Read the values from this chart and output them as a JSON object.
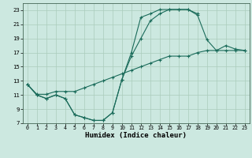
{
  "xlabel": "Humidex (Indice chaleur)",
  "bg_color": "#cce8e0",
  "grid_color": "#aaccbb",
  "line_color": "#1a6b5a",
  "xlim": [
    -0.5,
    23.5
  ],
  "ylim": [
    7,
    24
  ],
  "xticks": [
    0,
    1,
    2,
    3,
    4,
    5,
    6,
    7,
    8,
    9,
    10,
    11,
    12,
    13,
    14,
    15,
    16,
    17,
    18,
    19,
    20,
    21,
    22,
    23
  ],
  "yticks": [
    7,
    9,
    11,
    13,
    15,
    17,
    19,
    21,
    23
  ],
  "line1_x": [
    0,
    1,
    2,
    3,
    4,
    5,
    6,
    7,
    8,
    9,
    10,
    11,
    12,
    13,
    14,
    15,
    16,
    17,
    18
  ],
  "line1_y": [
    12.5,
    11,
    10.5,
    11,
    10.5,
    8.2,
    7.8,
    7.4,
    7.4,
    8.5,
    13.2,
    17,
    22,
    22.5,
    23.1,
    23.1,
    23.1,
    23.1,
    22.5
  ],
  "line2_x": [
    0,
    1,
    2,
    3,
    4,
    5,
    6,
    7,
    8,
    9,
    10,
    11,
    12,
    13,
    14,
    15,
    16,
    17,
    18,
    19,
    20,
    21,
    22,
    23
  ],
  "line2_y": [
    12.5,
    11,
    10.5,
    11,
    10.5,
    8.2,
    7.8,
    7.4,
    7.4,
    8.5,
    13.2,
    16.5,
    19,
    21.5,
    22.5,
    23.1,
    23.1,
    23.1,
    22.3,
    18.8,
    17.3,
    18.0,
    17.5,
    17.3
  ],
  "line3_x": [
    0,
    1,
    2,
    3,
    4,
    5,
    6,
    7,
    8,
    9,
    10,
    11,
    12,
    13,
    14,
    15,
    16,
    17,
    18,
    19,
    20,
    21,
    22,
    23
  ],
  "line3_y": [
    12.5,
    11.1,
    11.1,
    11.5,
    11.5,
    11.5,
    12.0,
    12.5,
    13.0,
    13.5,
    14.0,
    14.5,
    15.0,
    15.5,
    16.0,
    16.5,
    16.5,
    16.5,
    17.0,
    17.3,
    17.3,
    17.3,
    17.3,
    17.3
  ]
}
